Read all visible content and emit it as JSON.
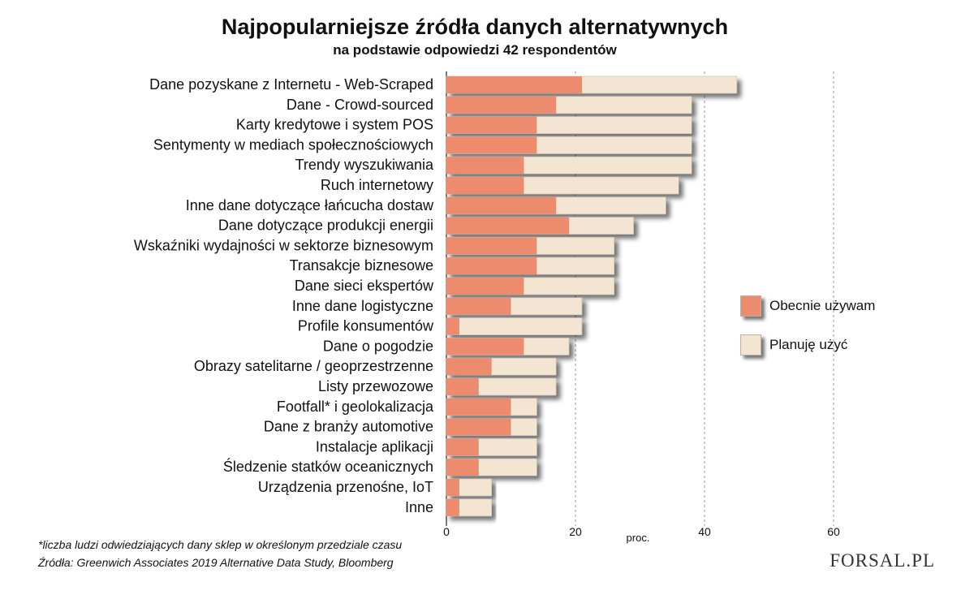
{
  "title": "Najpopularniejsze źródła danych alternatywnych",
  "subtitle": "na podstawie odpowiedzi 42 respondentów",
  "footnote": "*liczba ludzi odwiedziających dany sklep w określonym przedziale czasu",
  "source": "Źródła:  Greenwich Associates 2019 Alternative Data Study, Bloomberg",
  "logo": "FORSAL.PL",
  "legend": {
    "current": "Obecnie używam",
    "planned": "Planuję użyć"
  },
  "colors": {
    "current": "#ec8b6e",
    "planned": "#f3e5d2",
    "grid": "#999999"
  },
  "chart_data": {
    "type": "bar",
    "orientation": "horizontal",
    "stacked": true,
    "title": "Najpopularniejsze źródła danych alternatywnych",
    "subtitle": "na podstawie odpowiedzi 42 respondentów",
    "xlabel": "proc.",
    "xlim": [
      0,
      60
    ],
    "xticks": [
      0,
      20,
      40,
      60
    ],
    "grid": "vertical dashed",
    "legend_position": "right",
    "categories": [
      "Dane pozyskane z Internetu - Web-Scraped",
      "Dane - Crowd-sourced",
      "Karty kredytowe i system POS",
      "Sentymenty w mediach społecznościowych",
      "Trendy wyszukiwania",
      "Ruch internetowy",
      "Inne dane dotyczące łańcucha dostaw",
      "Dane dotyczące produkcji energii",
      "Wskaźniki wydajności w sektorze biznesowym",
      "Transakcje biznesowe",
      "Dane sieci ekspertów",
      "Inne dane logistyczne",
      "Profile konsumentów",
      "Dane o pogodzie",
      "Obrazy satelitarne / geoprzestrzenne",
      "Listy przewozowe",
      "Footfall* i geolokalizacja",
      "Dane z branży automotive",
      "Instalacje aplikacji",
      "Śledzenie statków oceanicznych",
      "Urządzenia przenośne, IoT",
      "Inne"
    ],
    "series": [
      {
        "name": "Obecnie używam",
        "values": [
          21,
          17,
          14,
          14,
          12,
          12,
          17,
          19,
          14,
          14,
          12,
          10,
          2,
          12,
          7,
          5,
          10,
          10,
          5,
          5,
          2,
          2
        ]
      },
      {
        "name": "Planuję użyć",
        "values": [
          24,
          21,
          24,
          24,
          26,
          24,
          17,
          10,
          12,
          12,
          14,
          11,
          19,
          7,
          10,
          12,
          4,
          4,
          9,
          9,
          5,
          5
        ]
      }
    ]
  }
}
